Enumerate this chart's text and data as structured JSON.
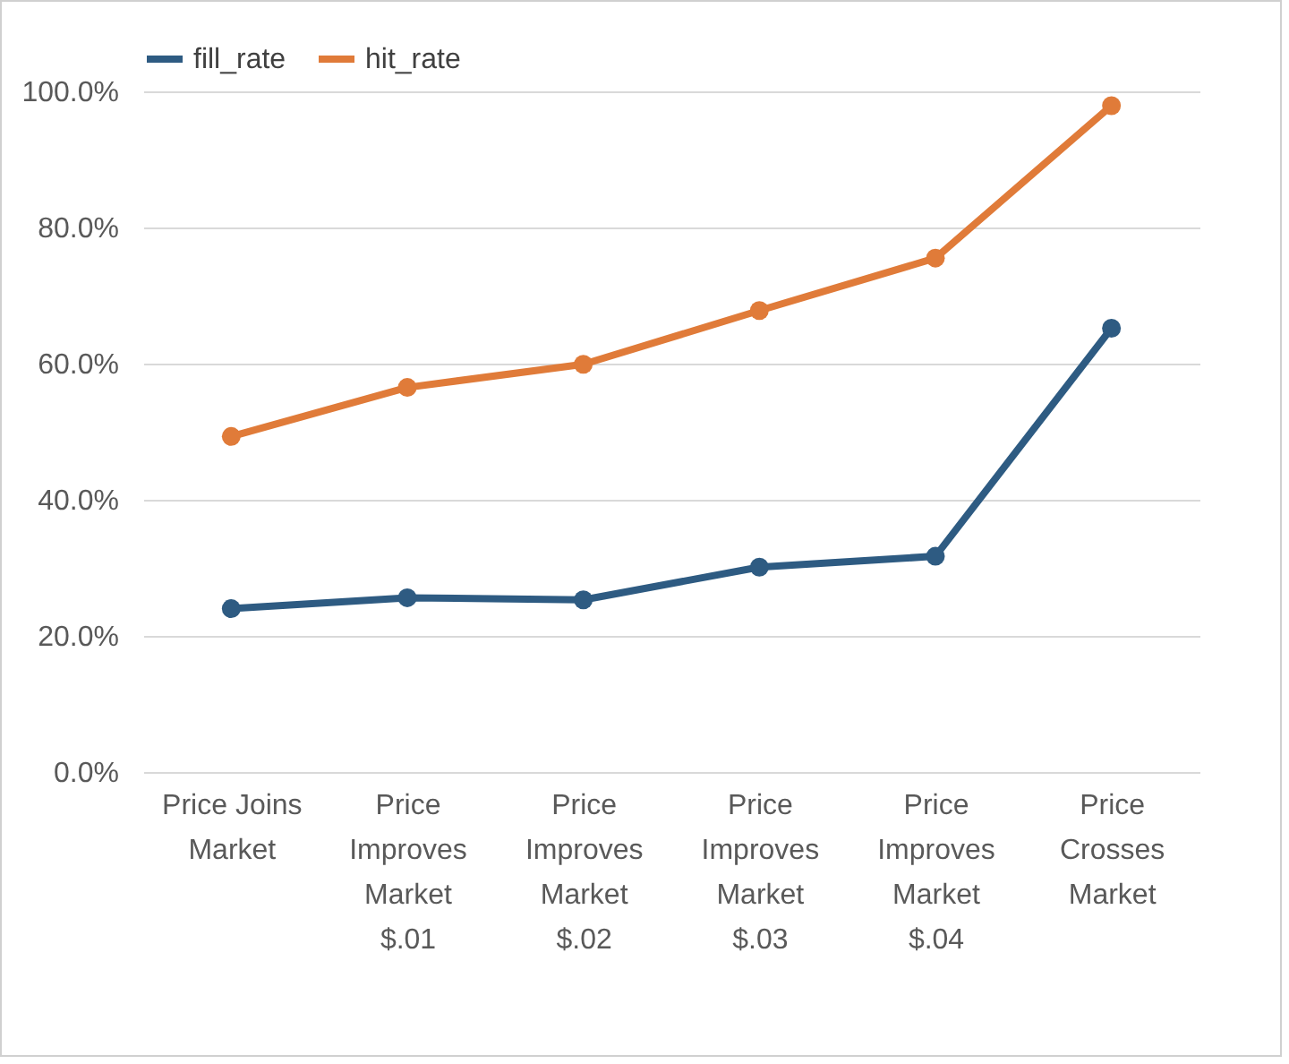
{
  "chart_data": {
    "type": "line",
    "categories": [
      "Price Joins Market",
      "Price Improves Market $.01",
      "Price Improves Market $.02",
      "Price Improves Market $.03",
      "Price Improves Market $.04",
      "Price Crosses Market"
    ],
    "series": [
      {
        "name": "fill_rate",
        "color": "#2e5b82",
        "values": [
          24.0,
          25.6,
          25.3,
          30.1,
          31.7,
          65.2
        ]
      },
      {
        "name": "hit_rate",
        "color": "#e07b39",
        "values": [
          49.3,
          56.5,
          59.9,
          67.8,
          75.5,
          97.9
        ]
      }
    ],
    "ylim": [
      0,
      100
    ],
    "yticks": [
      {
        "value": 0,
        "label": "0.0%"
      },
      {
        "value": 20,
        "label": "20.0%"
      },
      {
        "value": 40,
        "label": "40.0%"
      },
      {
        "value": 60,
        "label": "60.0%"
      },
      {
        "value": 80,
        "label": "80.0%"
      },
      {
        "value": 100,
        "label": "100.0%"
      }
    ],
    "grid": "y",
    "legend": "top",
    "marker": "circle",
    "line_style": "solid"
  }
}
